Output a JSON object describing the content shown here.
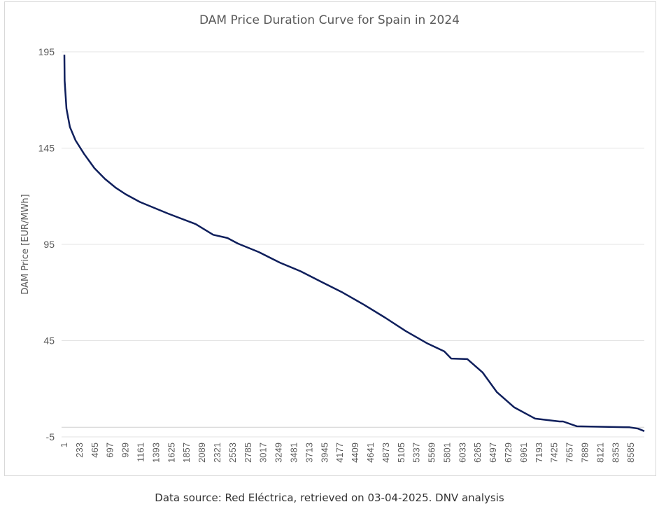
{
  "chart_data": {
    "type": "line",
    "title": "DAM Price Duration Curve for Spain in 2024",
    "xlabel": "",
    "ylabel": "DAM Price [EUR/MWh]",
    "ylim": [
      -5,
      195
    ],
    "xlim": [
      1,
      8784
    ],
    "yticks": [
      195,
      145,
      95,
      45,
      -5
    ],
    "xticks": [
      1,
      233,
      465,
      697,
      929,
      1161,
      1393,
      1625,
      1857,
      2089,
      2321,
      2553,
      2785,
      3017,
      3249,
      3481,
      3713,
      3945,
      4177,
      4409,
      4641,
      4873,
      5105,
      5337,
      5569,
      5801,
      6033,
      6265,
      6497,
      6729,
      6961,
      7193,
      7425,
      7657,
      7889,
      8121,
      8353,
      8585
    ],
    "grid": "horizontal",
    "line_color": "#0f1f5c",
    "series": [
      {
        "x": [
          1,
          5,
          33,
          85,
          170,
          300,
          455,
          615,
          775,
          930,
          1145,
          1570,
          1990,
          2255,
          2470,
          2630,
          2945,
          3265,
          3580,
          3900,
          4215,
          4535,
          4855,
          5170,
          5490,
          5755,
          5860,
          6105,
          6335,
          6550,
          6815,
          7130,
          7500,
          7555,
          7765,
          8560,
          8690,
          8784
        ],
        "y": [
          193.5,
          180,
          165.5,
          156,
          149,
          142,
          134.6,
          129,
          124.5,
          121,
          117,
          111,
          105.5,
          100,
          98.3,
          95.4,
          91,
          85.5,
          81,
          75.4,
          70,
          63.7,
          57,
          50,
          43.7,
          39.4,
          35.7,
          35.4,
          28.5,
          18.3,
          10.3,
          4.5,
          3,
          3,
          0.5,
          0,
          -0.7,
          -2
        ]
      }
    ]
  },
  "footer": {
    "source": "Data source: Red Eléctrica, retrieved on 03-04-2025. DNV analysis"
  }
}
